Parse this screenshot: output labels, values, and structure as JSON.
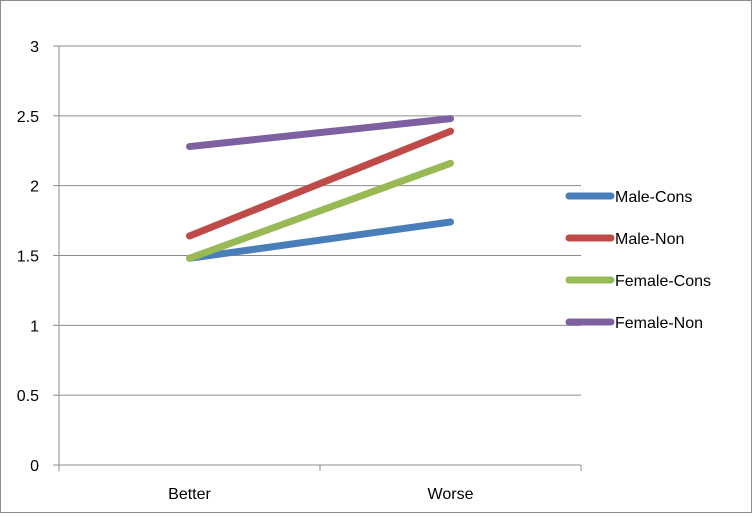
{
  "chart_data": {
    "type": "line",
    "title": "",
    "xlabel": "",
    "ylabel": "",
    "categories": [
      "Better",
      "Worse"
    ],
    "ylim": [
      0,
      3
    ],
    "yticks": [
      "0",
      "0.5",
      "1",
      "1.5",
      "2",
      "2.5",
      "3"
    ],
    "grid": true,
    "legend_position": "right",
    "series": [
      {
        "name": "Male-Cons",
        "color": "#4A7EBB",
        "values": [
          1.48,
          1.74
        ]
      },
      {
        "name": "Male-Non",
        "color": "#BE4B48",
        "values": [
          1.64,
          2.39
        ]
      },
      {
        "name": "Female-Cons",
        "color": "#98B954",
        "values": [
          1.48,
          2.16
        ]
      },
      {
        "name": "Female-Non",
        "color": "#7D60A0",
        "values": [
          2.28,
          2.48
        ]
      }
    ]
  }
}
